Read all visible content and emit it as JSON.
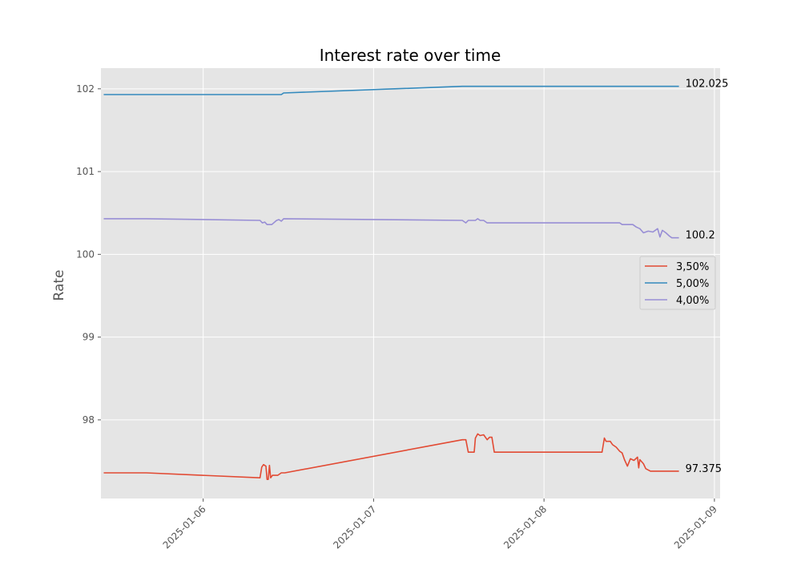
{
  "chart_data": {
    "type": "line",
    "title": "Interest rate over time",
    "xlabel": "",
    "ylabel": "Rate",
    "x_axis_type": "date",
    "xlim": [
      "2025-01-05 09:36",
      "2025-01-09 00:48"
    ],
    "ylim": [
      97.05,
      102.25
    ],
    "x_ticks": [
      "2025-01-06",
      "2025-01-07",
      "2025-01-08",
      "2025-01-09"
    ],
    "y_ticks": [
      98,
      99,
      100,
      101,
      102
    ],
    "grid": true,
    "legend_position": "center-right",
    "end_labels": [
      "102.025",
      "100.2",
      "97.375"
    ],
    "series": [
      {
        "name": "3,50%",
        "color": "#E24A33",
        "points": [
          [
            "2025-01-05 10:00",
            97.36
          ],
          [
            "2025-01-05 16:00",
            97.36
          ],
          [
            "2025-01-06 08:00",
            97.3
          ],
          [
            "2025-01-06 08:15",
            97.43
          ],
          [
            "2025-01-06 08:30",
            97.46
          ],
          [
            "2025-01-06 08:50",
            97.44
          ],
          [
            "2025-01-06 09:00",
            97.28
          ],
          [
            "2025-01-06 09:10",
            97.28
          ],
          [
            "2025-01-06 09:20",
            97.45
          ],
          [
            "2025-01-06 09:30",
            97.3
          ],
          [
            "2025-01-06 09:45",
            97.33
          ],
          [
            "2025-01-06 10:30",
            97.33
          ],
          [
            "2025-01-06 11:00",
            97.36
          ],
          [
            "2025-01-06 11:30",
            97.36
          ],
          [
            "2025-01-07 12:30",
            97.76
          ],
          [
            "2025-01-07 13:00",
            97.76
          ],
          [
            "2025-01-07 13:20",
            97.61
          ],
          [
            "2025-01-07 14:10",
            97.61
          ],
          [
            "2025-01-07 14:20",
            97.78
          ],
          [
            "2025-01-07 14:40",
            97.83
          ],
          [
            "2025-01-07 15:00",
            97.81
          ],
          [
            "2025-01-07 15:30",
            97.82
          ],
          [
            "2025-01-07 16:00",
            97.76
          ],
          [
            "2025-01-07 16:20",
            97.79
          ],
          [
            "2025-01-07 16:40",
            97.79
          ],
          [
            "2025-01-07 17:00",
            97.61
          ],
          [
            "2025-01-08 08:10",
            97.61
          ],
          [
            "2025-01-08 08:30",
            97.78
          ],
          [
            "2025-01-08 08:45",
            97.74
          ],
          [
            "2025-01-08 09:20",
            97.74
          ],
          [
            "2025-01-08 09:40",
            97.7
          ],
          [
            "2025-01-08 10:10",
            97.67
          ],
          [
            "2025-01-08 10:40",
            97.62
          ],
          [
            "2025-01-08 11:00",
            97.6
          ],
          [
            "2025-01-08 11:20",
            97.52
          ],
          [
            "2025-01-08 11:45",
            97.44
          ],
          [
            "2025-01-08 12:10",
            97.53
          ],
          [
            "2025-01-08 12:40",
            97.51
          ],
          [
            "2025-01-08 13:10",
            97.55
          ],
          [
            "2025-01-08 13:20",
            97.42
          ],
          [
            "2025-01-08 13:30",
            97.52
          ],
          [
            "2025-01-08 14:00",
            97.47
          ],
          [
            "2025-01-08 14:20",
            97.41
          ],
          [
            "2025-01-08 15:00",
            97.38
          ],
          [
            "2025-01-08 19:00",
            97.38
          ]
        ]
      },
      {
        "name": "5,00%",
        "color": "#348ABD",
        "points": [
          [
            "2025-01-05 10:00",
            101.93
          ],
          [
            "2025-01-06 11:00",
            101.93
          ],
          [
            "2025-01-06 11:20",
            101.95
          ],
          [
            "2025-01-07 12:30",
            102.03
          ],
          [
            "2025-01-08 19:00",
            102.03
          ]
        ]
      },
      {
        "name": "4,00%",
        "color": "#988ED5",
        "points": [
          [
            "2025-01-05 10:00",
            100.43
          ],
          [
            "2025-01-05 16:00",
            100.43
          ],
          [
            "2025-01-06 08:00",
            100.41
          ],
          [
            "2025-01-06 08:20",
            100.38
          ],
          [
            "2025-01-06 08:40",
            100.39
          ],
          [
            "2025-01-06 09:00",
            100.36
          ],
          [
            "2025-01-06 09:40",
            100.36
          ],
          [
            "2025-01-06 10:20",
            100.41
          ],
          [
            "2025-01-06 10:40",
            100.42
          ],
          [
            "2025-01-06 11:00",
            100.4
          ],
          [
            "2025-01-06 11:20",
            100.43
          ],
          [
            "2025-01-07 12:30",
            100.41
          ],
          [
            "2025-01-07 13:00",
            100.38
          ],
          [
            "2025-01-07 13:20",
            100.41
          ],
          [
            "2025-01-07 14:20",
            100.41
          ],
          [
            "2025-01-07 14:40",
            100.43
          ],
          [
            "2025-01-07 15:00",
            100.41
          ],
          [
            "2025-01-07 15:30",
            100.41
          ],
          [
            "2025-01-07 16:00",
            100.38
          ],
          [
            "2025-01-08 10:40",
            100.38
          ],
          [
            "2025-01-08 11:00",
            100.36
          ],
          [
            "2025-01-08 12:30",
            100.36
          ],
          [
            "2025-01-08 13:00",
            100.33
          ],
          [
            "2025-01-08 13:30",
            100.31
          ],
          [
            "2025-01-08 14:00",
            100.26
          ],
          [
            "2025-01-08 14:40",
            100.28
          ],
          [
            "2025-01-08 15:20",
            100.27
          ],
          [
            "2025-01-08 16:00",
            100.31
          ],
          [
            "2025-01-08 16:20",
            100.21
          ],
          [
            "2025-01-08 16:40",
            100.29
          ],
          [
            "2025-01-08 17:10",
            100.26
          ],
          [
            "2025-01-08 17:40",
            100.22
          ],
          [
            "2025-01-08 18:00",
            100.2
          ],
          [
            "2025-01-08 19:00",
            100.2
          ]
        ]
      }
    ],
    "legend_order": [
      0,
      1,
      2
    ],
    "legend_frame_color": "#cccccc",
    "plot_background": "#E5E5E5",
    "grid_color": "#ffffff"
  }
}
